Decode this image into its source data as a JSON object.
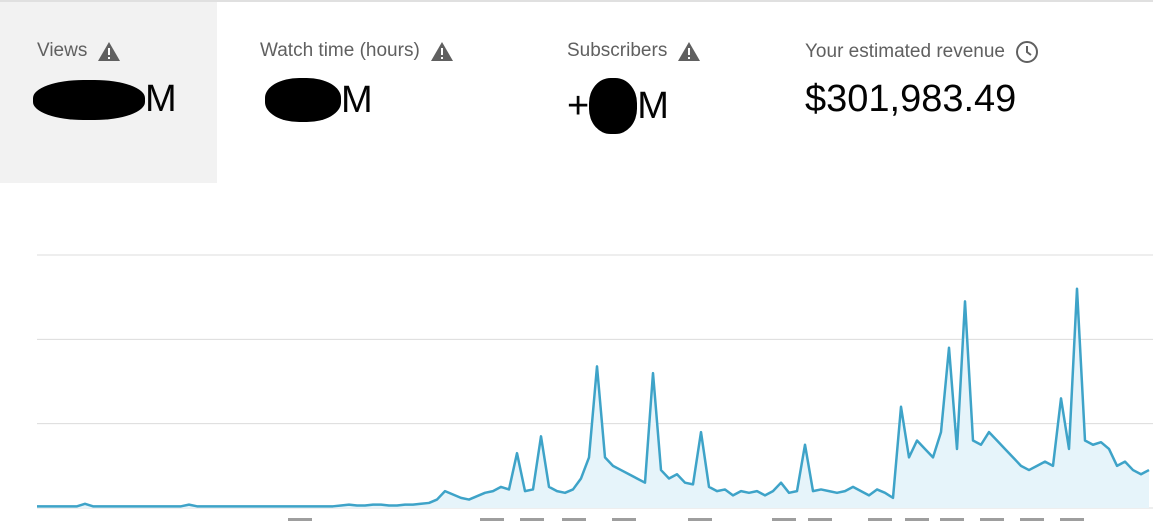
{
  "metrics": [
    {
      "label": "Views",
      "value_suffix": "M"
    },
    {
      "label": "Watch time (hours)",
      "value_suffix": "M"
    },
    {
      "label": "Subscribers",
      "value_prefix": "+",
      "value_suffix": "M"
    },
    {
      "label": "Your estimated revenue",
      "value": "$301,983.49"
    }
  ],
  "chart_data": {
    "type": "line",
    "color": "#3ea3c8",
    "fill": "#e6f4fa",
    "ylim": [
      0,
      3
    ],
    "yticks": [
      0,
      1,
      2,
      3
    ],
    "grid": true,
    "values": [
      0.02,
      0.02,
      0.02,
      0.02,
      0.02,
      0.02,
      0.05,
      0.02,
      0.02,
      0.02,
      0.02,
      0.02,
      0.02,
      0.02,
      0.02,
      0.02,
      0.02,
      0.02,
      0.02,
      0.04,
      0.02,
      0.02,
      0.02,
      0.02,
      0.02,
      0.02,
      0.02,
      0.02,
      0.02,
      0.02,
      0.02,
      0.02,
      0.02,
      0.02,
      0.02,
      0.02,
      0.02,
      0.02,
      0.03,
      0.04,
      0.03,
      0.03,
      0.04,
      0.04,
      0.03,
      0.03,
      0.04,
      0.04,
      0.05,
      0.06,
      0.1,
      0.2,
      0.16,
      0.12,
      0.1,
      0.14,
      0.18,
      0.2,
      0.25,
      0.22,
      0.65,
      0.2,
      0.22,
      0.85,
      0.25,
      0.2,
      0.18,
      0.22,
      0.35,
      0.6,
      1.68,
      0.6,
      0.5,
      0.45,
      0.4,
      0.35,
      0.3,
      1.6,
      0.45,
      0.35,
      0.4,
      0.3,
      0.28,
      0.9,
      0.25,
      0.2,
      0.22,
      0.15,
      0.2,
      0.18,
      0.2,
      0.15,
      0.2,
      0.3,
      0.18,
      0.2,
      0.75,
      0.2,
      0.22,
      0.2,
      0.18,
      0.2,
      0.25,
      0.2,
      0.15,
      0.22,
      0.18,
      0.12,
      1.2,
      0.6,
      0.8,
      0.7,
      0.6,
      0.9,
      1.9,
      0.7,
      2.45,
      0.8,
      0.75,
      0.9,
      0.8,
      0.7,
      0.6,
      0.5,
      0.45,
      0.5,
      0.55,
      0.5,
      1.3,
      0.7,
      2.6,
      0.8,
      0.75,
      0.78,
      0.7,
      0.5,
      0.55,
      0.45,
      0.4,
      0.45
    ]
  }
}
